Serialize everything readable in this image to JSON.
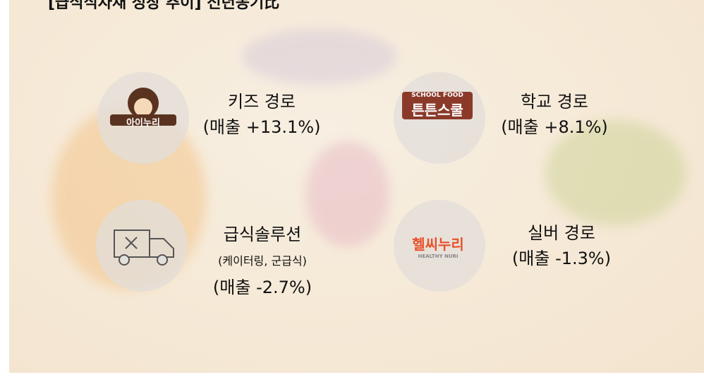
{
  "header": {
    "title": "[급식식자재 성장 추이] 전년동기比"
  },
  "segments": [
    {
      "logo": "아이누리",
      "label": "키즈 경로",
      "sales": "(매출 +13.1%)"
    },
    {
      "logo": "튼튼스쿨",
      "logo_sub": "SCHOOL FOOD",
      "label": "학교 경로",
      "sales": "(매출 +8.1%)"
    },
    {
      "label": "급식솔루션",
      "note": "(케이터링, 군급식)",
      "sales": "(매출 -2.7%)"
    },
    {
      "logo": "헬씨누리",
      "logo_sub": "HEALTHY NURI",
      "label": "실버 경로",
      "sales": "(매출 -1.3%)"
    }
  ]
}
